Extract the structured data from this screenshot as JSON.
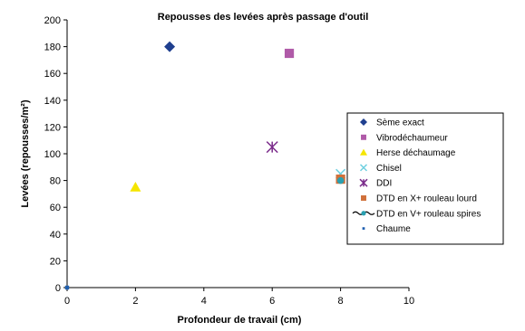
{
  "chart_data": {
    "type": "scatter",
    "title": "Repousses des levées après passage d'outil",
    "xlabel": "Profondeur de travail (cm)",
    "ylabel": "Levées (repousses/m²)",
    "xlim": [
      0,
      10
    ],
    "ylim": [
      0,
      200
    ],
    "xticks": [
      "0",
      "2",
      "4",
      "6",
      "8",
      "10"
    ],
    "yticks": [
      "0",
      "20",
      "40",
      "60",
      "80",
      "100",
      "120",
      "140",
      "160",
      "180",
      "200"
    ],
    "grid": false,
    "legend_position": "right",
    "series": [
      {
        "name": "Sème exact",
        "marker": "diamond",
        "color": "#1f3f8f",
        "x": [
          3
        ],
        "y": [
          180
        ]
      },
      {
        "name": "Vibrodéchaumeur",
        "marker": "square",
        "color": "#b05aa8",
        "x": [
          6.5
        ],
        "y": [
          175
        ]
      },
      {
        "name": "Herse déchaumage",
        "marker": "triangle",
        "color": "#f5e500",
        "x": [
          2
        ],
        "y": [
          75
        ]
      },
      {
        "name": "Chisel",
        "marker": "x",
        "color": "#6fd0e0",
        "x": [
          8
        ],
        "y": [
          85
        ]
      },
      {
        "name": "DDI",
        "marker": "star",
        "color": "#7a2a8a",
        "x": [
          6
        ],
        "y": [
          105
        ]
      },
      {
        "name": "DTD en X+ rouleau lourd",
        "marker": "square",
        "color": "#d0703a",
        "x": [
          8
        ],
        "y": [
          81
        ]
      },
      {
        "name": "DTD en V+ rouleau spires",
        "marker": "circle-line",
        "color": "#2aa0b0",
        "x": [
          8
        ],
        "y": [
          80
        ]
      },
      {
        "name": "Chaume",
        "marker": "small-square",
        "color": "#2060b0",
        "x": [
          0
        ],
        "y": [
          0
        ]
      }
    ]
  }
}
